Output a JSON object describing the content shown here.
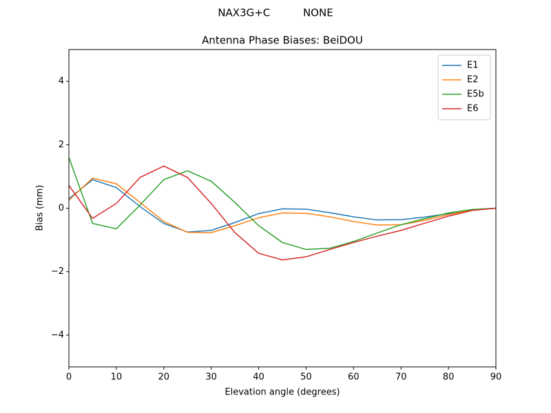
{
  "chart_data": {
    "type": "line",
    "suptitle": "NAX3G+C          NONE",
    "title": "Antenna Phase Biases: BeiDOU",
    "x_label": "Elevation angle (degrees)",
    "y_label": "Bias (mm)",
    "x": [
      0,
      5,
      10,
      15,
      20,
      25,
      30,
      35,
      40,
      45,
      50,
      55,
      60,
      65,
      70,
      75,
      80,
      85,
      90
    ],
    "series": [
      {
        "name": "E1",
        "color": "#1f77b4",
        "values": [
          0.3,
          0.9,
          0.65,
          0.05,
          -0.48,
          -0.75,
          -0.7,
          -0.45,
          -0.17,
          -0.02,
          -0.03,
          -0.14,
          -0.27,
          -0.37,
          -0.36,
          -0.28,
          -0.17,
          -0.05,
          0
        ]
      },
      {
        "name": "E2",
        "color": "#ff7f0e",
        "values": [
          0.25,
          0.95,
          0.77,
          0.18,
          -0.42,
          -0.76,
          -0.77,
          -0.55,
          -0.3,
          -0.15,
          -0.16,
          -0.27,
          -0.42,
          -0.53,
          -0.52,
          -0.38,
          -0.2,
          -0.06,
          0
        ]
      },
      {
        "name": "E5b",
        "color": "#2ca02c",
        "values": [
          1.6,
          -0.48,
          -0.65,
          0.1,
          0.9,
          1.18,
          0.85,
          0.18,
          -0.55,
          -1.08,
          -1.3,
          -1.26,
          -1.05,
          -0.78,
          -0.52,
          -0.33,
          -0.15,
          -0.04,
          0
        ]
      },
      {
        "name": "E6",
        "color": "#d62728",
        "values": [
          0.72,
          -0.32,
          0.15,
          0.97,
          1.33,
          0.97,
          0.15,
          -0.77,
          -1.42,
          -1.63,
          -1.53,
          -1.3,
          -1.08,
          -0.88,
          -0.7,
          -0.47,
          -0.25,
          -0.07,
          0
        ]
      }
    ],
    "xlim": [
      0,
      90
    ],
    "xticks": [
      0,
      10,
      20,
      30,
      40,
      50,
      60,
      70,
      80,
      90
    ],
    "ylim": [
      -5,
      5
    ],
    "yticks": [
      {
        "value": -4,
        "label": "−4"
      },
      {
        "value": -2,
        "label": "−2"
      },
      0,
      2,
      4
    ],
    "legend": "upper right",
    "grid": false
  }
}
